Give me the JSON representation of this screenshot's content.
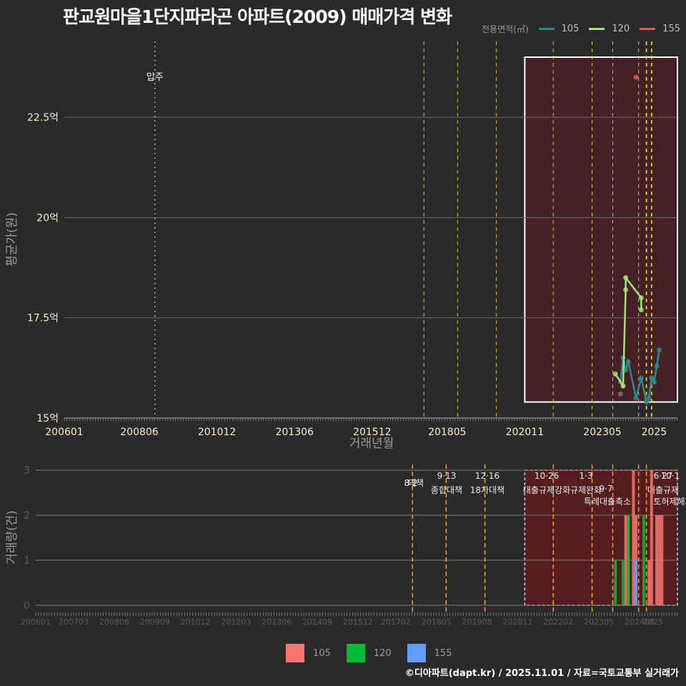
{
  "title": "판교원마을1단지파라곤 아파트(2009) 매매가격 변화",
  "legend_top": {
    "title": "전용면적(㎡)",
    "items": [
      {
        "label": "105",
        "color": "#2a8c8c"
      },
      {
        "label": "120",
        "color": "#a6e07a"
      },
      {
        "label": "155",
        "color": "#e05a5a"
      }
    ]
  },
  "legend_bottom": {
    "items": [
      {
        "label": "105",
        "color": "#f8766d"
      },
      {
        "label": "120",
        "color": "#00ba38"
      },
      {
        "label": "155",
        "color": "#619cff"
      }
    ]
  },
  "footer": "©디아파트(dapt.kr) / 2025.11.01 / 자료=국토교통부 실거래가",
  "chart_data": [
    {
      "type": "line",
      "title": "판교원마을1단지파라곤 아파트(2009) 매매가격 변화",
      "xlabel": "거래년월",
      "ylabel": "평균가(원)",
      "x_ticks": [
        "200601",
        "200806",
        "201012",
        "201306",
        "201512",
        "201805",
        "202011",
        "202305",
        "2025"
      ],
      "y_ticks": [
        "15억",
        "17.5억",
        "20억",
        "22.5억"
      ],
      "ylim": [
        15.0,
        24.0
      ],
      "annotations": [
        {
          "x": "200812",
          "label": "입주",
          "style": "dotted-white"
        }
      ],
      "policy_lines": [
        "201708",
        "201809",
        "201912",
        "202110",
        "202301",
        "202309",
        "202407",
        "202410",
        "202412"
      ],
      "highlight_box": {
        "x_from": "202011",
        "x_to": "202510",
        "y_from": 15.4,
        "y_to": 24.0
      },
      "series": [
        {
          "name": "105",
          "color": "#2a8c8c",
          "points": [
            [
              "202312",
              15.9
            ],
            [
              "202401",
              16.5
            ],
            [
              "202402",
              16.2
            ],
            [
              "202403",
              16.4
            ],
            [
              "202406",
              15.5
            ],
            [
              "202408",
              16.0
            ],
            [
              "202410",
              15.4
            ],
            [
              "202411",
              15.5
            ],
            [
              "202412",
              16.0
            ],
            [
              "202501",
              15.9
            ],
            [
              "202502",
              16.3
            ],
            [
              "202503",
              16.7
            ]
          ]
        },
        {
          "name": "120",
          "color": "#a6e07a",
          "points": [
            [
              "202310",
              16.1
            ],
            [
              "202401",
              15.8
            ],
            [
              "202402",
              18.2
            ],
            [
              "202402",
              18.5
            ],
            [
              "202408",
              18.0
            ],
            [
              "202408",
              17.7
            ]
          ]
        },
        {
          "name": "155",
          "color": "#e05a5a",
          "points": [
            [
              "202406",
              23.5
            ]
          ]
        },
        {
          "name": "other",
          "color": "#777777",
          "points": [
            [
              "202312",
              15.6
            ]
          ]
        }
      ]
    },
    {
      "type": "bar",
      "xlabel": "",
      "ylabel": "거래량(건)",
      "x_ticks": [
        "200601",
        "200703",
        "200806",
        "200909",
        "201012",
        "201203",
        "201306",
        "201409",
        "201512",
        "201702",
        "201805",
        "201908",
        "202011",
        "202202",
        "202305",
        "202408",
        "2025"
      ],
      "y_ticks": [
        "0",
        "1",
        "2",
        "3"
      ],
      "ylim": [
        0,
        3
      ],
      "policy_annotations": [
        {
          "x": "201708",
          "date": "8·2",
          "label": "대책"
        },
        {
          "x": "201809",
          "date": "9·13",
          "label": "종합대책"
        },
        {
          "x": "201912",
          "date": "12·16",
          "label": "18차대책"
        },
        {
          "x": "202110",
          "date": "10·26",
          "label": "대출규제강화"
        },
        {
          "x": "202301",
          "date": "1·3",
          "label": "규제완화"
        },
        {
          "x": "202309",
          "date": "9·7",
          "label": "특례대출축소"
        },
        {
          "x": "202407",
          "date": "6·27",
          "label": "대출규제"
        },
        {
          "x": "202410",
          "date": "10·1",
          "label": "토허제해제"
        }
      ],
      "series": [
        {
          "name": "105",
          "color": "#f8766d",
          "points": [
            [
              "202402",
              2
            ],
            [
              "202403",
              2
            ],
            [
              "202405",
              3
            ],
            [
              "202406",
              2
            ],
            [
              "202411",
              1
            ],
            [
              "202412",
              3
            ],
            [
              "202502",
              2
            ],
            [
              "202503",
              2
            ],
            [
              "202504",
              2
            ]
          ]
        },
        {
          "name": "120",
          "color": "#00ba38",
          "points": [
            [
              "202310",
              1
            ],
            [
              "202401",
              1
            ],
            [
              "202403",
              2
            ],
            [
              "202409",
              2
            ]
          ]
        },
        {
          "name": "155",
          "color": "#619cff",
          "points": [
            [
              "202406",
              1
            ]
          ]
        }
      ]
    }
  ]
}
